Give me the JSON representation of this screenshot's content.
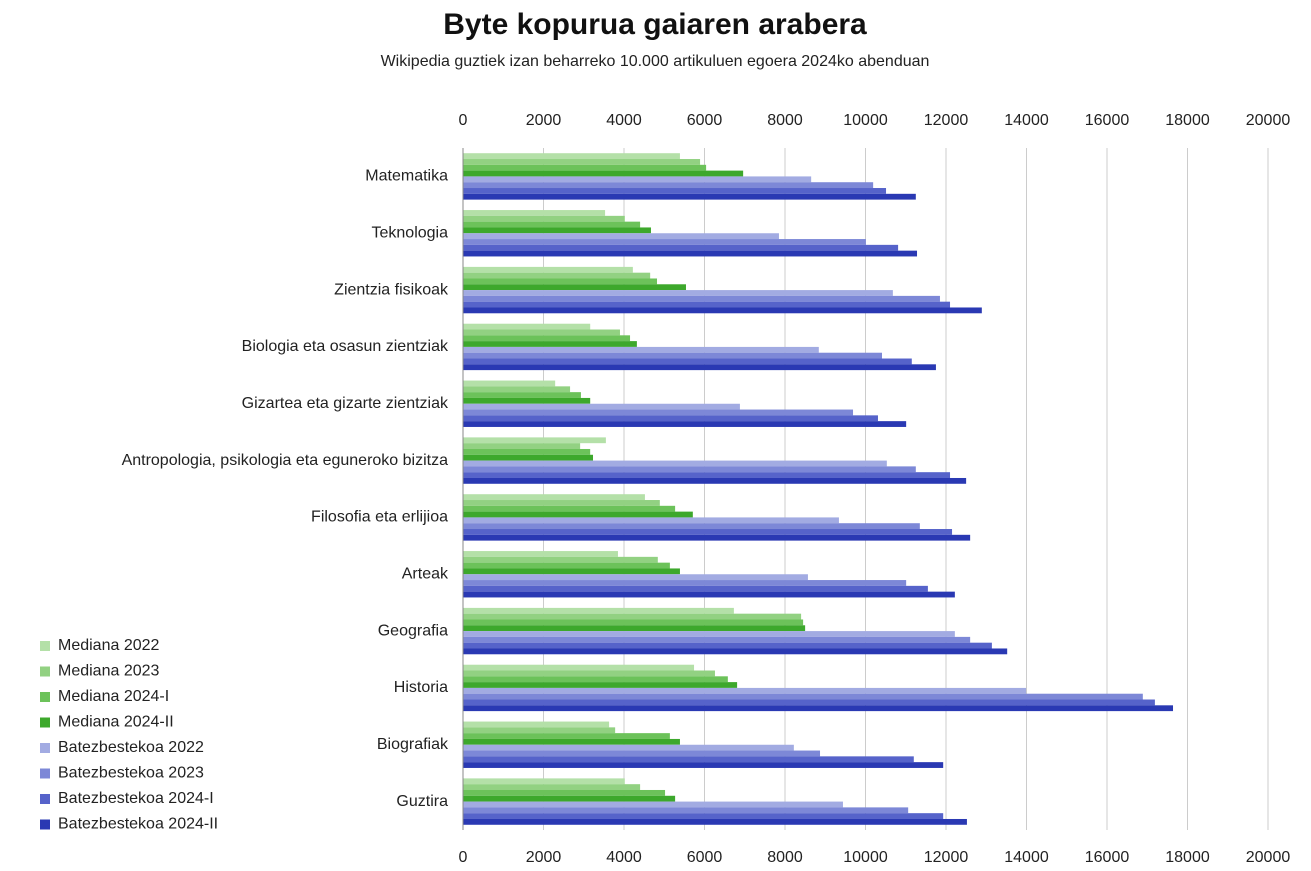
{
  "chart_data": {
    "type": "barh",
    "title": "Byte kopurua gaiaren arabera",
    "subtitle": "Wikipedia guztiek izan beharreko 10.000 artikuluen egoera 2024ko abenduan",
    "categories": [
      "Matematika",
      "Teknologia",
      "Zientzia fisikoak",
      "Biologia eta osasun zientziak",
      "Gizartea eta gizarte zientziak",
      "Antropologia, psikologia eta eguneroko bizitza",
      "Filosofia eta erlijioa",
      "Arteak",
      "Geografia",
      "Historia",
      "Biografiak",
      "Guztira"
    ],
    "series": [
      {
        "name": "Mediana 2022",
        "color": "#b4e0a8",
        "values": [
          5390,
          3530,
          4220,
          3160,
          2290,
          3550,
          4520,
          3850,
          6730,
          5740,
          3630,
          4020
        ]
      },
      {
        "name": "Mediana 2023",
        "color": "#92d182",
        "values": [
          5890,
          4020,
          4650,
          3900,
          2660,
          2910,
          4890,
          4840,
          8400,
          6260,
          3780,
          4400
        ]
      },
      {
        "name": "Mediana 2024-I",
        "color": "#6cc25a",
        "values": [
          6040,
          4400,
          4820,
          4150,
          2930,
          3160,
          5270,
          5140,
          8450,
          6580,
          5140,
          5020
        ]
      },
      {
        "name": "Mediana 2024-II",
        "color": "#3da82c",
        "values": [
          6960,
          4670,
          5540,
          4320,
          3160,
          3230,
          5710,
          5390,
          8500,
          6810,
          5390,
          5270
        ]
      },
      {
        "name": "Batezbestekoa 2022",
        "color": "#a2abe2",
        "values": [
          8650,
          7850,
          10680,
          8840,
          6880,
          10530,
          9340,
          8570,
          12220,
          13990,
          8220,
          9440
        ]
      },
      {
        "name": "Batezbestekoa 2023",
        "color": "#7d88d7",
        "values": [
          10190,
          10010,
          11850,
          10410,
          9690,
          11250,
          11350,
          11010,
          12600,
          16890,
          8870,
          11060
        ]
      },
      {
        "name": "Batezbestekoa 2024-I",
        "color": "#5663ca",
        "values": [
          10510,
          10810,
          12100,
          11150,
          10310,
          12100,
          12150,
          11550,
          13140,
          17190,
          11200,
          11930
        ]
      },
      {
        "name": "Batezbestekoa 2024-II",
        "color": "#2a39b3",
        "values": [
          11250,
          11280,
          12890,
          11750,
          11010,
          12500,
          12600,
          12220,
          13520,
          17640,
          11930,
          12520
        ]
      }
    ],
    "xlim": [
      0,
      20000
    ],
    "xticks": [
      0,
      2000,
      4000,
      6000,
      8000,
      10000,
      12000,
      14000,
      16000,
      18000,
      20000
    ],
    "grid": true,
    "legend": "bottom-left"
  }
}
